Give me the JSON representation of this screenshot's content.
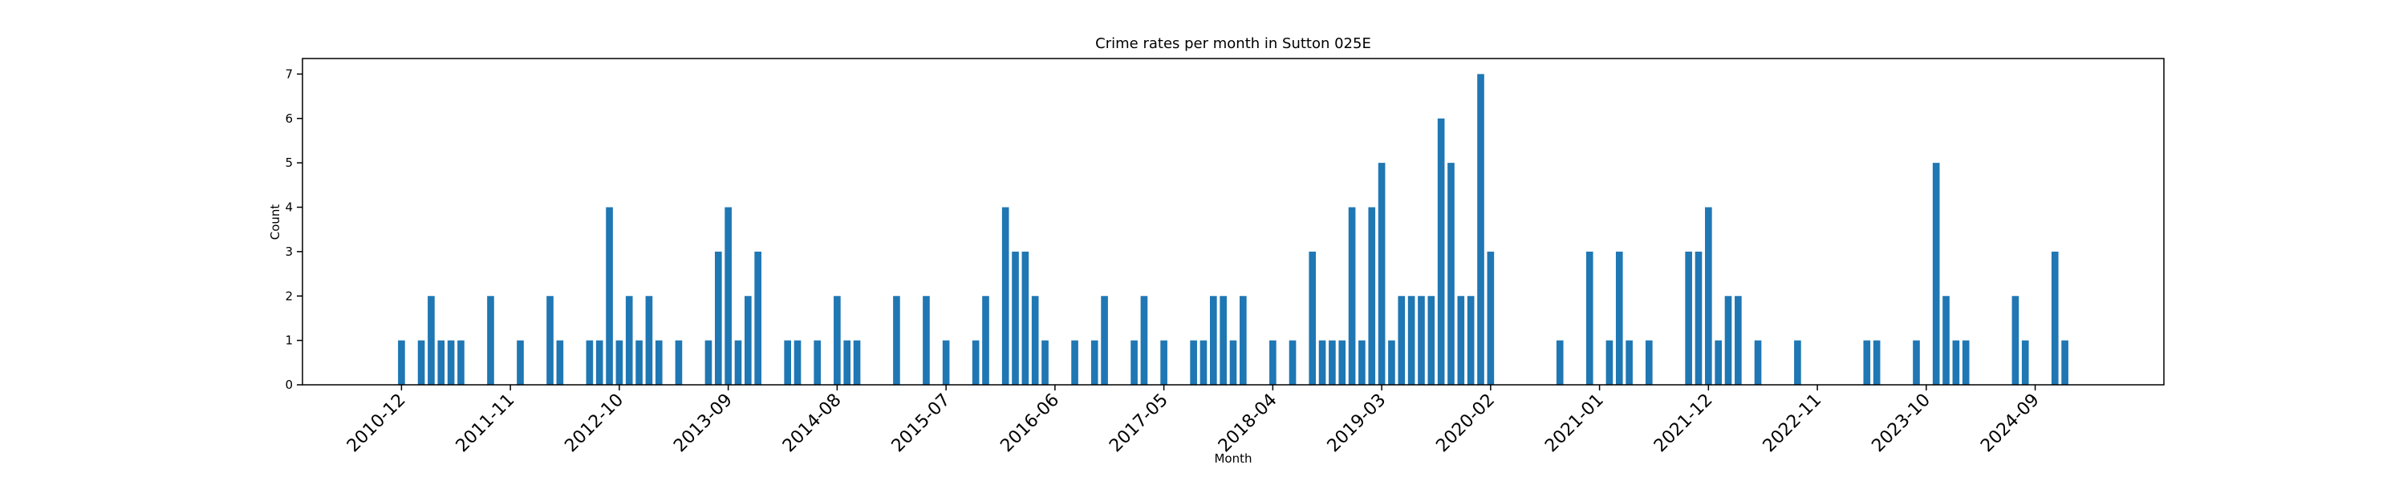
{
  "chart_data": {
    "type": "bar",
    "title": "Crime rates per month in Sutton 025E",
    "xlabel": "Month",
    "ylabel": "Count",
    "color": "#1f77b4",
    "x": [
      "2010-12",
      "2011-02",
      "2011-03",
      "2011-04",
      "2011-05",
      "2011-06",
      "2011-09",
      "2011-12",
      "2012-03",
      "2012-04",
      "2012-07",
      "2012-08",
      "2012-09",
      "2012-10",
      "2012-11",
      "2012-12",
      "2013-01",
      "2013-02",
      "2013-04",
      "2013-07",
      "2013-08",
      "2013-09",
      "2013-10",
      "2013-11",
      "2013-12",
      "2014-03",
      "2014-04",
      "2014-06",
      "2014-08",
      "2014-09",
      "2014-10",
      "2015-02",
      "2015-05",
      "2015-07",
      "2015-10",
      "2015-11",
      "2016-01",
      "2016-02",
      "2016-03",
      "2016-04",
      "2016-05",
      "2016-08",
      "2016-10",
      "2016-11",
      "2017-02",
      "2017-03",
      "2017-05",
      "2017-08",
      "2017-09",
      "2017-10",
      "2017-11",
      "2017-12",
      "2018-01",
      "2018-04",
      "2018-06",
      "2018-08",
      "2018-09",
      "2018-10",
      "2018-11",
      "2018-12",
      "2019-01",
      "2019-02",
      "2019-03",
      "2019-04",
      "2019-05",
      "2019-06",
      "2019-07",
      "2019-08",
      "2019-09",
      "2019-10",
      "2019-11",
      "2019-12",
      "2020-01",
      "2020-02",
      "2020-09",
      "2020-12",
      "2021-02",
      "2021-03",
      "2021-04",
      "2021-06",
      "2021-10",
      "2021-11",
      "2021-12",
      "2022-01",
      "2022-02",
      "2022-03",
      "2022-05",
      "2022-09",
      "2023-04",
      "2023-05",
      "2023-09",
      "2023-11",
      "2023-12",
      "2024-01",
      "2024-02",
      "2024-07",
      "2024-08",
      "2024-11",
      "2024-12"
    ],
    "values": [
      1,
      1,
      2,
      1,
      1,
      1,
      2,
      1,
      2,
      1,
      1,
      1,
      4,
      1,
      2,
      1,
      2,
      1,
      1,
      1,
      3,
      4,
      1,
      2,
      3,
      1,
      1,
      1,
      2,
      1,
      1,
      2,
      2,
      1,
      1,
      2,
      4,
      3,
      3,
      2,
      1,
      1,
      1,
      2,
      1,
      2,
      1,
      1,
      1,
      2,
      2,
      1,
      2,
      1,
      1,
      3,
      1,
      1,
      1,
      4,
      1,
      4,
      5,
      1,
      2,
      2,
      2,
      2,
      6,
      5,
      2,
      2,
      7,
      3,
      1,
      3,
      1,
      3,
      1,
      1,
      3,
      3,
      4,
      1,
      2,
      2,
      1,
      1,
      1,
      1,
      1,
      5,
      2,
      1,
      1,
      2,
      1,
      3,
      1
    ],
    "xlim": [
      "2010-02",
      "2025-10"
    ],
    "xticks": [
      "2010-12",
      "2011-11",
      "2012-10",
      "2013-09",
      "2014-08",
      "2015-07",
      "2016-06",
      "2017-05",
      "2018-04",
      "2019-03",
      "2020-02",
      "2021-01",
      "2021-12",
      "2022-11",
      "2023-10",
      "2024-09"
    ],
    "ylim": [
      0,
      7.35
    ],
    "yticks": [
      0,
      1,
      2,
      3,
      4,
      5,
      6,
      7
    ]
  }
}
